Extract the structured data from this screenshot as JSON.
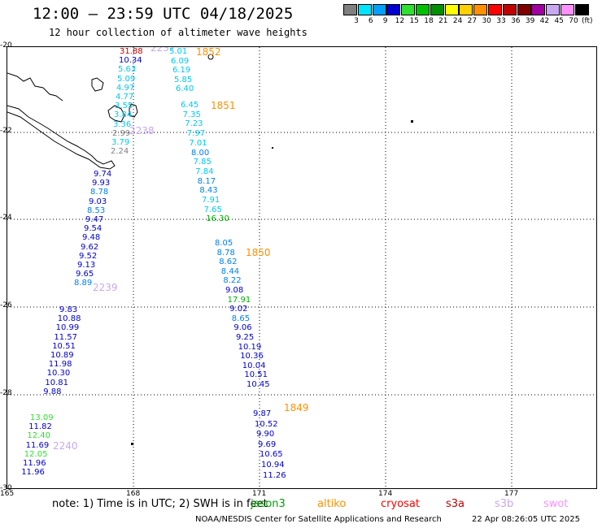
{
  "title": "12:00 – 23:59 UTC 04/18/2025",
  "subtitle": "12 hour collection of altimeter wave heights",
  "legend": {
    "unit": "(ft)",
    "bins": [
      {
        "label": "3",
        "color": "#808080"
      },
      {
        "label": "6",
        "color": "#00e5ff"
      },
      {
        "label": "9",
        "color": "#00a0ff"
      },
      {
        "label": "12",
        "color": "#0000d0"
      },
      {
        "label": "15",
        "color": "#30e030"
      },
      {
        "label": "18",
        "color": "#00c000"
      },
      {
        "label": "21",
        "color": "#009000"
      },
      {
        "label": "24",
        "color": "#ffff00"
      },
      {
        "label": "27",
        "color": "#ffd000"
      },
      {
        "label": "30",
        "color": "#ff9000"
      },
      {
        "label": "33",
        "color": "#ff0000"
      },
      {
        "label": "36",
        "color": "#c00000"
      },
      {
        "label": "39",
        "color": "#800000"
      },
      {
        "label": "42",
        "color": "#a000a0"
      },
      {
        "label": "45",
        "color": "#c8a8f0"
      },
      {
        "label": "70",
        "color": "#ff90ff"
      },
      {
        "label": "",
        "color": "#000000"
      }
    ]
  },
  "axes": {
    "lon_ticks": [
      "165",
      "168",
      "171",
      "174",
      "177"
    ],
    "lat_ticks": [
      "-20",
      "-22",
      "-24",
      "-26",
      "-28",
      "-30"
    ]
  },
  "tracks": [
    {
      "time": "2237",
      "color": "#c8a8f0",
      "values": [
        {
          "v": "31.88",
          "c": "#c00000"
        },
        {
          "v": "10.34",
          "c": "#0000d0"
        },
        {
          "v": "5.63",
          "c": "#00c8f0"
        },
        {
          "v": "5.09",
          "c": "#00c8f0"
        },
        {
          "v": "4.97",
          "c": "#00c8f0"
        },
        {
          "v": "4.77",
          "c": "#00c8f0"
        },
        {
          "v": "3.55",
          "c": "#00c8f0"
        },
        {
          "v": "3.84",
          "c": "#00c8f0"
        },
        {
          "v": "3.36",
          "c": "#00c8f0"
        },
        {
          "v": "2.99",
          "c": "#808080"
        },
        {
          "v": "3.79",
          "c": "#00c8f0"
        },
        {
          "v": "2.24",
          "c": "#808080"
        }
      ]
    },
    {
      "time": "2238",
      "color": "#c8a8f0",
      "values": [
        {
          "v": "9.74",
          "c": "#0000d0"
        },
        {
          "v": "9.93",
          "c": "#0000d0"
        },
        {
          "v": "8.78",
          "c": "#0080f0"
        },
        {
          "v": "9.03",
          "c": "#0000d0"
        },
        {
          "v": "8.53",
          "c": "#0080f0"
        },
        {
          "v": "9.47",
          "c": "#0000d0"
        },
        {
          "v": "9.54",
          "c": "#0000d0"
        },
        {
          "v": "9.48",
          "c": "#0000d0"
        },
        {
          "v": "9.62",
          "c": "#0000d0"
        },
        {
          "v": "9.52",
          "c": "#0000d0"
        },
        {
          "v": "9.13",
          "c": "#0000d0"
        },
        {
          "v": "9.65",
          "c": "#0000d0"
        },
        {
          "v": "8.89",
          "c": "#0080f0"
        }
      ]
    },
    {
      "time": "2239",
      "color": "#c8a8f0",
      "values": [
        {
          "v": "9.83",
          "c": "#0000d0"
        },
        {
          "v": "10.88",
          "c": "#0000d0"
        },
        {
          "v": "10.99",
          "c": "#0000d0"
        },
        {
          "v": "11.57",
          "c": "#0000d0"
        },
        {
          "v": "10.51",
          "c": "#0000d0"
        },
        {
          "v": "10.89",
          "c": "#0000d0"
        },
        {
          "v": "11.98",
          "c": "#0000d0"
        },
        {
          "v": "10.30",
          "c": "#0000d0"
        },
        {
          "v": "10.81",
          "c": "#0000d0"
        },
        {
          "v": "9.88",
          "c": "#0000d0"
        }
      ]
    },
    {
      "time": "2240",
      "color": "#c8a8f0",
      "values": [
        {
          "v": "13.09",
          "c": "#30e030"
        },
        {
          "v": "11.82",
          "c": "#0000d0"
        },
        {
          "v": "12.40",
          "c": "#30e030"
        },
        {
          "v": "11.69",
          "c": "#0000d0"
        },
        {
          "v": "12.05",
          "c": "#30e030"
        },
        {
          "v": "11.96",
          "c": "#0000d0"
        },
        {
          "v": "11.96",
          "c": "#0000d0"
        }
      ]
    },
    {
      "time": "1852",
      "color": "#ff9000",
      "values": [
        {
          "v": "5.01",
          "c": "#00c8f0"
        },
        {
          "v": "6.09",
          "c": "#00c8f0"
        },
        {
          "v": "6.19",
          "c": "#00c8f0"
        },
        {
          "v": "5.85",
          "c": "#00c8f0"
        },
        {
          "v": "6.40",
          "c": "#00c8f0"
        }
      ]
    },
    {
      "time": "1851",
      "color": "#ff9000",
      "values": [
        {
          "v": "6.45",
          "c": "#00c8f0"
        },
        {
          "v": "7.35",
          "c": "#00c8f0"
        },
        {
          "v": "7.23",
          "c": "#00c8f0"
        },
        {
          "v": "7.97",
          "c": "#00c8f0"
        },
        {
          "v": "7.01",
          "c": "#00c8f0"
        },
        {
          "v": "8.00",
          "c": "#0080f0"
        },
        {
          "v": "7.85",
          "c": "#00c8f0"
        },
        {
          "v": "7.84",
          "c": "#00c8f0"
        },
        {
          "v": "8.17",
          "c": "#0080f0"
        },
        {
          "v": "8.43",
          "c": "#0080f0"
        },
        {
          "v": "7.91",
          "c": "#00c8f0"
        },
        {
          "v": "7.65",
          "c": "#00c8f0"
        },
        {
          "v": "16.30",
          "c": "#00b000"
        }
      ]
    },
    {
      "time": "1850",
      "color": "#ff9000",
      "values": [
        {
          "v": "8.05",
          "c": "#0080f0"
        },
        {
          "v": "8.78",
          "c": "#0080f0"
        },
        {
          "v": "8.62",
          "c": "#0080f0"
        },
        {
          "v": "8.44",
          "c": "#0080f0"
        },
        {
          "v": "8.22",
          "c": "#0080f0"
        },
        {
          "v": "9.08",
          "c": "#0000d0"
        },
        {
          "v": "17.91",
          "c": "#00b000"
        },
        {
          "v": "9.02",
          "c": "#0000d0"
        },
        {
          "v": "8.65",
          "c": "#0080f0"
        },
        {
          "v": "9.06",
          "c": "#0000d0"
        },
        {
          "v": "9.25",
          "c": "#0000d0"
        },
        {
          "v": "10.19",
          "c": "#0000d0"
        },
        {
          "v": "10.36",
          "c": "#0000d0"
        },
        {
          "v": "10.04",
          "c": "#0000d0"
        },
        {
          "v": "10.51",
          "c": "#0000d0"
        },
        {
          "v": "10.45",
          "c": "#0000d0"
        }
      ]
    },
    {
      "time": "1849",
      "color": "#ff9000",
      "values": [
        {
          "v": "9.87",
          "c": "#0000d0"
        },
        {
          "v": "10.52",
          "c": "#0000d0"
        },
        {
          "v": "9.90",
          "c": "#0000d0"
        },
        {
          "v": "9.69",
          "c": "#0000d0"
        },
        {
          "v": "10.65",
          "c": "#0000d0"
        },
        {
          "v": "10.94",
          "c": "#0000d0"
        },
        {
          "v": "11.26",
          "c": "#0000d0"
        }
      ]
    }
  ],
  "footer": {
    "note": "note: 1) Time is in UTC; 2) SWH is in feet",
    "satellites": [
      {
        "name": "jason3",
        "color": "#00a000"
      },
      {
        "name": "altiko",
        "color": "#ff9000"
      },
      {
        "name": "cryosat",
        "color": "#ff0000"
      },
      {
        "name": "s3a",
        "color": "#c00000"
      },
      {
        "name": "s3b",
        "color": "#c8a8f0"
      },
      {
        "name": "swot",
        "color": "#ff90ff"
      }
    ],
    "credit": "NOAA/NESDIS Center for Satellite Applications and Research",
    "timestamp": "22 Apr 08:26:05 UTC 2025"
  }
}
